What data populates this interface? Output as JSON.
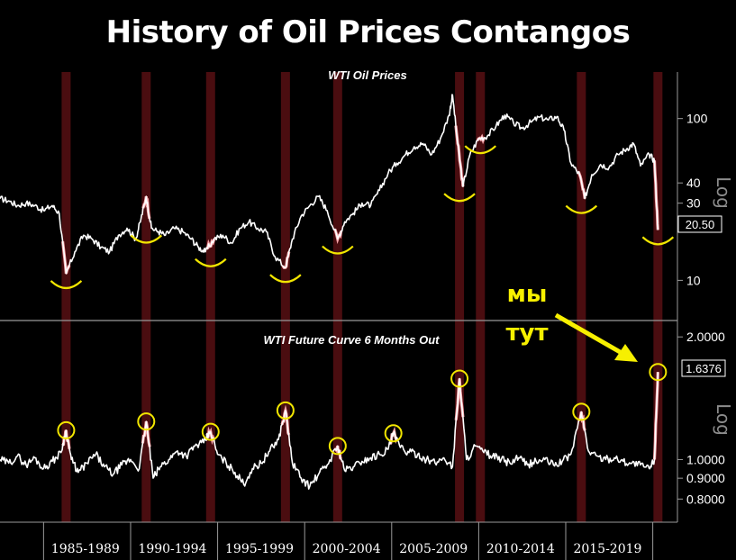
{
  "title": "History of Oil Prices Contangos",
  "annotation": {
    "line1": "мы",
    "line2": "тут",
    "color": "#f7f000"
  },
  "colors": {
    "line": "#ffffff",
    "band": "#4a0d10",
    "highlight": "#f4a3a8",
    "marker": "#f2e600",
    "axis": "#9a9a9a",
    "bg": "#000000"
  },
  "chart_data": [
    {
      "type": "line",
      "title": "WTI Oil Prices",
      "scale": "log",
      "ylabel": "Log",
      "yticks": [
        10,
        30,
        40,
        100
      ],
      "ylim": [
        6.5,
        160
      ],
      "xlim": [
        1982.5,
        2020.8
      ],
      "last_value_label": "20.50",
      "contango_years": [
        1986.3,
        1990.9,
        1994.6,
        1998.9,
        2001.9,
        2008.9,
        2010.1,
        2015.9,
        2020.3
      ],
      "series": [
        {
          "x": [
            1982.5,
            1983,
            1983.5,
            1984,
            1984.5,
            1985,
            1985.5,
            1985.9,
            1986.3,
            1986.8,
            1987.3,
            1987.8,
            1988.3,
            1988.8,
            1989.3,
            1989.8,
            1990.3,
            1990.6,
            1990.9,
            1991.2,
            1991.6,
            1992,
            1992.5,
            1993,
            1993.5,
            1993.9,
            1994.3,
            1994.8,
            1995.3,
            1995.8,
            1996.3,
            1996.8,
            1997.3,
            1997.8,
            1998.3,
            1998.9,
            1999.3,
            1999.8,
            2000.3,
            2000.8,
            2001.3,
            2001.9,
            2002.3,
            2002.8,
            2003.3,
            2003.8,
            2004.3,
            2004.8,
            2005.3,
            2005.8,
            2006.3,
            2006.8,
            2007.3,
            2007.8,
            2008.3,
            2008.5,
            2008.8,
            2009.1,
            2009.5,
            2010,
            2010.5,
            2011,
            2011.5,
            2012,
            2012.5,
            2013,
            2013.5,
            2014,
            2014.5,
            2014.9,
            2015.3,
            2015.8,
            2016.1,
            2016.5,
            2017,
            2017.5,
            2018,
            2018.5,
            2018.9,
            2019.3,
            2019.8,
            2020.1,
            2020.3
          ],
          "y": [
            32,
            31,
            29,
            30,
            29,
            27,
            29,
            26,
            11,
            15,
            19,
            18,
            16,
            15,
            19,
            21,
            18,
            24,
            33,
            21,
            20,
            19,
            21,
            20,
            18,
            16,
            15,
            18,
            19,
            17,
            21,
            23,
            21,
            20,
            14,
            12,
            18,
            25,
            29,
            33,
            27,
            18,
            23,
            26,
            30,
            29,
            36,
            46,
            53,
            60,
            67,
            70,
            60,
            75,
            105,
            140,
            70,
            38,
            60,
            75,
            78,
            90,
            105,
            94,
            87,
            95,
            102,
            98,
            103,
            85,
            53,
            45,
            32,
            45,
            52,
            50,
            60,
            65,
            70,
            51,
            60,
            55,
            20.5
          ]
        }
      ]
    },
    {
      "type": "line",
      "title": "WTI Future Curve 6 Months Out",
      "scale": "log",
      "ylabel": "Log",
      "yticks": [
        "2.0000",
        "1.0000",
        "0.9000",
        "0.8000"
      ],
      "ytick_values": [
        2.0,
        1.0,
        0.9,
        0.8
      ],
      "ylim": [
        0.72,
        2.15
      ],
      "xlim": [
        1982.5,
        2020.8
      ],
      "last_value_label": "1.6376",
      "xticks": [
        "1985-1989",
        "1990-1994",
        "1995-1999",
        "2000-2004",
        "2005-2009",
        "2010-2014",
        "2015-2019"
      ],
      "xtick_values": [
        1987.2,
        1992.2,
        1997.2,
        2002.2,
        2007.2,
        2012.2,
        2017.2
      ],
      "peaks_years": [
        1986.3,
        1990.9,
        1994.6,
        1998.9,
        2001.9,
        2005.1,
        2008.9,
        2015.9,
        2020.3
      ],
      "series": [
        {
          "x": [
            1982.5,
            1983,
            1983.5,
            1984,
            1984.5,
            1985,
            1985.5,
            1986,
            1986.3,
            1986.6,
            1987,
            1987.5,
            1988,
            1988.5,
            1989,
            1989.5,
            1990,
            1990.5,
            1990.9,
            1991.3,
            1991.7,
            1992.2,
            1992.7,
            1993.2,
            1993.7,
            1994.2,
            1994.6,
            1995,
            1995.5,
            1996,
            1996.5,
            1997,
            1997.5,
            1998,
            1998.5,
            1998.9,
            1999.3,
            1999.8,
            2000.3,
            2000.8,
            2001.3,
            2001.9,
            2002.3,
            2002.8,
            2003.3,
            2003.8,
            2004.3,
            2004.8,
            2005.1,
            2005.5,
            2006,
            2006.5,
            2007,
            2007.5,
            2008,
            2008.5,
            2008.9,
            2009.3,
            2009.8,
            2010.3,
            2010.8,
            2011.3,
            2011.8,
            2012.3,
            2012.8,
            2013.3,
            2013.8,
            2014.3,
            2014.8,
            2015.3,
            2015.9,
            2016.3,
            2016.8,
            2017.3,
            2017.8,
            2018.3,
            2018.8,
            2019.3,
            2019.8,
            2020.1,
            2020.3
          ],
          "y": [
            1.0,
            0.98,
            1.02,
            0.97,
            1.01,
            0.95,
            0.99,
            1.04,
            1.18,
            1.0,
            0.93,
            0.98,
            1.03,
            0.96,
            0.92,
            0.97,
            1.0,
            0.95,
            1.24,
            0.9,
            0.96,
            1.0,
            1.05,
            1.02,
            1.08,
            1.1,
            1.17,
            1.03,
            0.98,
            0.93,
            0.87,
            0.95,
            0.98,
            1.05,
            1.12,
            1.32,
            0.98,
            0.9,
            0.86,
            0.92,
            0.97,
            1.08,
            0.94,
            0.96,
            0.99,
            1.01,
            1.03,
            1.06,
            1.16,
            1.07,
            1.04,
            1.03,
            1.0,
            0.98,
            1.01,
            0.96,
            1.58,
            1.0,
            1.08,
            1.04,
            1.02,
            1.0,
            0.98,
            1.01,
            0.97,
            0.99,
            1.0,
            0.97,
            0.99,
            1.03,
            1.31,
            1.05,
            1.02,
            1.0,
            1.01,
            0.99,
            0.98,
            0.97,
            0.95,
            1.0,
            1.64
          ]
        }
      ]
    }
  ]
}
